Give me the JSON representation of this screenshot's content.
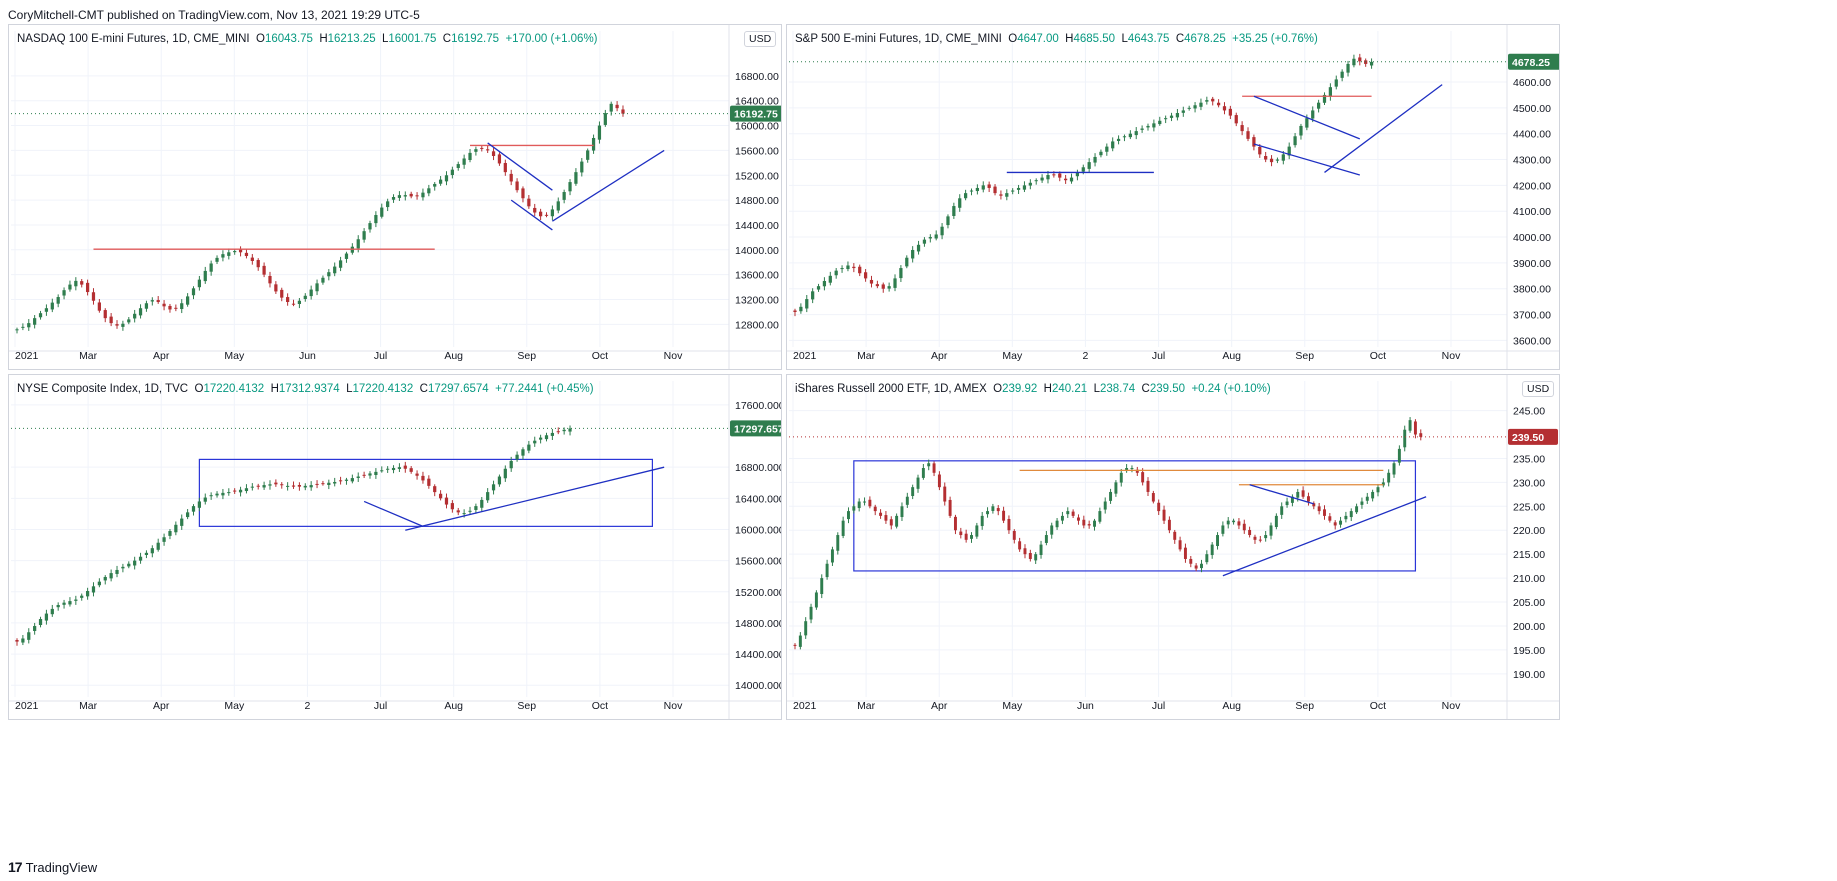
{
  "header": {
    "published": "CoryMitchell-CMT published on TradingView.com, Nov 13, 2021 19:29 UTC-5"
  },
  "footer": {
    "brand": "TradingView"
  },
  "colors": {
    "up": "#2f7d4e",
    "down": "#b42f32",
    "grid": "#f0f3fa",
    "trend": "#1e2fc2",
    "resistance": "#e05a5a",
    "orange": "#e08a3c",
    "box": "#2a35d8"
  },
  "chart_data": [
    {
      "type": "candlestick",
      "legend": {
        "name": "NASDAQ 100 E-mini Futures, 1D, CME_MINI",
        "o_label": "O",
        "o": "16043.75",
        "h_label": "H",
        "h": "16213.25",
        "l_label": "L",
        "l": "16001.75",
        "c_label": "C",
        "c": "16192.75",
        "chg": "+170.00 (+1.06%)"
      },
      "currency": "USD",
      "last_price": "16192.75",
      "last": 16192.75,
      "last_color": "#2f7d4e",
      "y_ticks": [
        "16800.00",
        "16400.00",
        "16000.00",
        "15600.00",
        "15200.00",
        "14800.00",
        "14400.00",
        "14000.00",
        "13600.00",
        "13200.00",
        "12800.00"
      ],
      "x_ticks": [
        "2021",
        "Mar",
        "Apr",
        "May",
        "Jun",
        "Jul",
        "Aug",
        "Sep",
        "Oct",
        "Nov"
      ],
      "ylim": [
        12500,
        17200
      ],
      "series": [
        12720,
        12760,
        12820,
        12900,
        12980,
        13060,
        13150,
        13240,
        13350,
        13440,
        13500,
        13440,
        13320,
        13180,
        13020,
        12900,
        12820,
        12780,
        12810,
        12880,
        12970,
        13060,
        13140,
        13190,
        13160,
        13090,
        13040,
        13060,
        13140,
        13250,
        13380,
        13520,
        13660,
        13780,
        13870,
        13930,
        13960,
        13980,
        13960,
        13900,
        13820,
        13720,
        13600,
        13460,
        13330,
        13230,
        13160,
        13130,
        13180,
        13260,
        13360,
        13460,
        13550,
        13640,
        13730,
        13830,
        13940,
        14050,
        14170,
        14300,
        14430,
        14560,
        14680,
        14780,
        14850,
        14880,
        14880,
        14860,
        14870,
        14920,
        14990,
        15060,
        15130,
        15200,
        15290,
        15380,
        15470,
        15560,
        15620,
        15640,
        15600,
        15510,
        15390,
        15250,
        15100,
        14960,
        14830,
        14700,
        14600,
        14540,
        14560,
        14650,
        14780,
        14930,
        15090,
        15250,
        15420,
        15600,
        15800,
        16000,
        16200,
        16350,
        16280,
        16192
      ],
      "lines": [
        {
          "kind": "resistance",
          "i0": 13,
          "i1": 71,
          "v0": 14010,
          "v1": 14010
        },
        {
          "kind": "resistance",
          "i0": 77,
          "i1": 98,
          "v0": 15680,
          "v1": 15680
        },
        {
          "kind": "trend",
          "i0": 80,
          "i1": 91,
          "v0": 15720,
          "v1": 14960
        },
        {
          "kind": "trend",
          "i0": 84,
          "i1": 91,
          "v0": 14800,
          "v1": 14320
        },
        {
          "kind": "trend",
          "i0": 91,
          "i1": 110,
          "v0": 14460,
          "v1": 15600
        }
      ],
      "boxes": []
    },
    {
      "type": "candlestick",
      "legend": {
        "name": "S&P 500 E-mini Futures, 1D, CME_MINI",
        "o_label": "O",
        "o": "4647.00",
        "h_label": "H",
        "h": "4685.50",
        "l_label": "L",
        "l": "4643.75",
        "c_label": "C",
        "c": "4678.25",
        "chg": "+35.25 (+0.76%)"
      },
      "currency": "",
      "last_price": "4678.25",
      "last": 4678.25,
      "last_color": "#2f7d4e",
      "y_ticks": [
        "4600.00",
        "4500.00",
        "4400.00",
        "4300.00",
        "4200.00",
        "4100.00",
        "4000.00",
        "3900.00",
        "3800.00",
        "3700.00",
        "3600.00"
      ],
      "x_ticks": [
        "2021",
        "Mar",
        "Apr",
        "May",
        "2",
        "Jul",
        "Aug",
        "Sep",
        "Oct",
        "Nov"
      ],
      "ylim": [
        3590,
        4720
      ],
      "series": [
        3710,
        3730,
        3760,
        3790,
        3810,
        3830,
        3850,
        3870,
        3880,
        3890,
        3880,
        3860,
        3840,
        3820,
        3810,
        3800,
        3810,
        3840,
        3880,
        3920,
        3950,
        3970,
        3990,
        4000,
        4010,
        4040,
        4080,
        4120,
        4150,
        4170,
        4180,
        4190,
        4200,
        4190,
        4170,
        4160,
        4170,
        4180,
        4190,
        4200,
        4210,
        4220,
        4230,
        4240,
        4240,
        4230,
        4220,
        4230,
        4250,
        4270,
        4290,
        4310,
        4330,
        4350,
        4370,
        4380,
        4390,
        4400,
        4410,
        4420,
        4430,
        4440,
        4450,
        4460,
        4470,
        4480,
        4490,
        4500,
        4510,
        4520,
        4530,
        4525,
        4510,
        4490,
        4470,
        4440,
        4410,
        4380,
        4350,
        4320,
        4300,
        4290,
        4300,
        4320,
        4350,
        4390,
        4430,
        4460,
        4490,
        4520,
        4550,
        4580,
        4610,
        4640,
        4670,
        4690,
        4680,
        4670,
        4678
      ],
      "lines": [
        {
          "kind": "trend",
          "i0": 36,
          "i1": 61,
          "v0": 4250,
          "v1": 4250
        },
        {
          "kind": "resistance",
          "i0": 76,
          "i1": 98,
          "v0": 4545,
          "v1": 4545
        },
        {
          "kind": "trend",
          "i0": 78,
          "i1": 96,
          "v0": 4545,
          "v1": 4380
        },
        {
          "kind": "trend",
          "i0": 78,
          "i1": 96,
          "v0": 4360,
          "v1": 4240
        },
        {
          "kind": "trend",
          "i0": 90,
          "i1": 110,
          "v0": 4250,
          "v1": 4590
        }
      ],
      "boxes": []
    },
    {
      "type": "candlestick",
      "legend": {
        "name": "NYSE Composite Index, 1D, TVC",
        "o_label": "O",
        "o": "17220.4132",
        "h_label": "H",
        "h": "17312.9374",
        "l_label": "L",
        "l": "17220.4132",
        "c_label": "C",
        "c": "17297.6574",
        "chg": "+77.2441 (+0.45%)"
      },
      "currency": "",
      "last_price": "17297.6574",
      "last": 17297.6574,
      "last_color": "#2f7d4e",
      "y_ticks": [
        "17600.0000",
        "16800.0000",
        "16400.0000",
        "16000.0000",
        "15600.0000",
        "15200.0000",
        "14800.0000",
        "14400.0000",
        "14000.0000"
      ],
      "x_ticks": [
        "2021",
        "Mar",
        "Apr",
        "May",
        "2",
        "Jul",
        "Aug",
        "Sep",
        "Oct",
        "Nov"
      ],
      "ylim": [
        13900,
        17650
      ],
      "series": [
        14560,
        14600,
        14680,
        14760,
        14850,
        14920,
        14980,
        15030,
        15060,
        15080,
        15100,
        15150,
        15210,
        15270,
        15330,
        15390,
        15440,
        15480,
        15520,
        15560,
        15600,
        15650,
        15700,
        15760,
        15830,
        15900,
        15980,
        16060,
        16140,
        16220,
        16300,
        16360,
        16410,
        16440,
        16460,
        16470,
        16480,
        16490,
        16510,
        16530,
        16550,
        16560,
        16570,
        16580,
        16580,
        16570,
        16560,
        16550,
        16550,
        16560,
        16570,
        16580,
        16590,
        16600,
        16610,
        16620,
        16640,
        16660,
        16680,
        16700,
        16720,
        16740,
        16760,
        16780,
        16790,
        16800,
        16780,
        16740,
        16690,
        16630,
        16560,
        16480,
        16400,
        16320,
        16260,
        16220,
        16210,
        16240,
        16300,
        16380,
        16480,
        16580,
        16680,
        16780,
        16880,
        16960,
        17030,
        17090,
        17140,
        17180,
        17210,
        17240,
        17260,
        17280,
        17297
      ],
      "lines": [
        {
          "kind": "trend",
          "i0": 59,
          "i1": 69,
          "v0": 16360,
          "v1": 16040
        },
        {
          "kind": "trend",
          "i0": 66,
          "i1": 110,
          "v0": 15990,
          "v1": 16800
        }
      ],
      "boxes": [
        {
          "i0": 31,
          "i1": 108,
          "v0": 16040,
          "v1": 16900
        }
      ]
    },
    {
      "type": "candlestick",
      "legend": {
        "name": "iShares Russell 2000 ETF, 1D, AMEX",
        "o_label": "O",
        "o": "239.92",
        "h_label": "H",
        "h": "240.21",
        "l_label": "L",
        "l": "238.74",
        "c_label": "C",
        "c": "239.50",
        "chg": "+0.24 (+0.10%)"
      },
      "currency": "USD",
      "last_price": "239.50",
      "last": 239.5,
      "last_color": "#b42f32",
      "y_ticks": [
        "245.00",
        "235.00",
        "230.00",
        "225.00",
        "220.00",
        "215.00",
        "210.00",
        "205.00",
        "200.00",
        "195.00",
        "190.00"
      ],
      "x_ticks": [
        "2021",
        "Mar",
        "Apr",
        "May",
        "Jun",
        "Jul",
        "Aug",
        "Sep",
        "Oct",
        "Nov"
      ],
      "ylim": [
        186,
        247
      ],
      "series": [
        196,
        198,
        201,
        204,
        207,
        210,
        213,
        216,
        219,
        222,
        224,
        225,
        226,
        226,
        225,
        224,
        223,
        222,
        221,
        223,
        225,
        227,
        229,
        231,
        233,
        234,
        232,
        229,
        226,
        223,
        220,
        219,
        218,
        219,
        221,
        223,
        224,
        225,
        224,
        222,
        220,
        218,
        216,
        215,
        214,
        215,
        217,
        219,
        221,
        222,
        223,
        224,
        223,
        222,
        221,
        221,
        222,
        224,
        226,
        228,
        230,
        232,
        233,
        233,
        232,
        230,
        228,
        226,
        224,
        222,
        220,
        218,
        216,
        214,
        213,
        212,
        213,
        215,
        217,
        219,
        221,
        222,
        222,
        221,
        220,
        219,
        218,
        218,
        219,
        221,
        223,
        225,
        226,
        227,
        228,
        227,
        226,
        225,
        224,
        223,
        222,
        221,
        222,
        223,
        224,
        225,
        226,
        227,
        228,
        229,
        230,
        232,
        234,
        237,
        241,
        243,
        240,
        239.5
      ],
      "lines": [
        {
          "kind": "orange",
          "i0": 42,
          "i1": 110,
          "v0": 232.5,
          "v1": 232.5
        },
        {
          "kind": "orange",
          "i0": 83,
          "i1": 110,
          "v0": 229.5,
          "v1": 229.5
        },
        {
          "kind": "trend",
          "i0": 85,
          "i1": 97,
          "v0": 229.5,
          "v1": 225.5
        },
        {
          "kind": "trend",
          "i0": 80,
          "i1": 118,
          "v0": 210.5,
          "v1": 227
        }
      ],
      "boxes": [
        {
          "i0": 11,
          "i1": 116,
          "v0": 211.5,
          "v1": 234.5
        }
      ]
    }
  ]
}
